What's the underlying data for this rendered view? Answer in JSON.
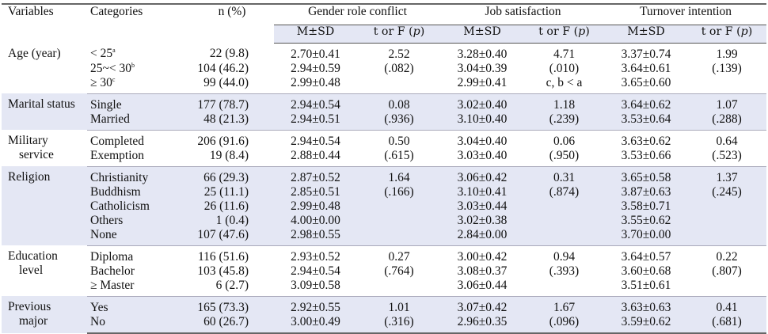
{
  "header": {
    "variables": "Variables",
    "categories": "Categories",
    "n": "n (%)",
    "groups": [
      "Gender role conflict",
      "Job satisfaction",
      "Turnover intention"
    ],
    "msd": "M±SD",
    "test_prefix": "t or F (",
    "test_p": "p",
    "test_suffix": ")"
  },
  "groups": [
    {
      "variable": [
        "Age (year)"
      ],
      "rows": [
        {
          "cat": "< 25",
          "sup": "a",
          "n": "22 (9.8)",
          "g_msd": "2.70±0.41",
          "g_t": "2.52",
          "j_msd": "3.28±0.40",
          "j_t": "4.71",
          "t_msd": "3.37±0.74",
          "t_t": "1.99"
        },
        {
          "cat": "25~< 30",
          "sup": "b",
          "n": "104 (46.2)",
          "g_msd": "2.94±0.59",
          "g_t": "(.082)",
          "j_msd": "3.04±0.39",
          "j_t": "(.010)",
          "t_msd": "3.64±0.61",
          "t_t": "(.139)"
        },
        {
          "cat": "≥ 30",
          "sup": "c",
          "n": "99 (44.0)",
          "g_msd": "2.99±0.48",
          "g_t": "",
          "j_msd": "2.99±0.41",
          "j_t": "c, b < a",
          "t_msd": "3.65±0.60",
          "t_t": ""
        }
      ]
    },
    {
      "variable": [
        "Marital status"
      ],
      "rows": [
        {
          "cat": "Single",
          "sup": "",
          "n": "177 (78.7)",
          "g_msd": "2.94±0.54",
          "g_t": "0.08",
          "j_msd": "3.02±0.40",
          "j_t": "1.18",
          "t_msd": "3.64±0.62",
          "t_t": "1.07"
        },
        {
          "cat": "Married",
          "sup": "",
          "n": "48 (21.3)",
          "g_msd": "2.94±0.51",
          "g_t": "(.936)",
          "j_msd": "3.10±0.40",
          "j_t": "(.239)",
          "t_msd": "3.53±0.64",
          "t_t": "(.288)"
        }
      ]
    },
    {
      "variable": [
        "Military",
        "service"
      ],
      "rows": [
        {
          "cat": "Completed",
          "sup": "",
          "n": "206 (91.6)",
          "g_msd": "2.94±0.54",
          "g_t": "0.50",
          "j_msd": "3.04±0.40",
          "j_t": "0.06",
          "t_msd": "3.63±0.62",
          "t_t": "0.64"
        },
        {
          "cat": "Exemption",
          "sup": "",
          "n": "19 (8.4)",
          "g_msd": "2.88±0.44",
          "g_t": "(.615)",
          "j_msd": "3.03±0.40",
          "j_t": "(.950)",
          "t_msd": "3.53±0.66",
          "t_t": "(.523)"
        }
      ]
    },
    {
      "variable": [
        "Religion"
      ],
      "rows": [
        {
          "cat": "Christianity",
          "sup": "",
          "n": "66 (29.3)",
          "g_msd": "2.87±0.52",
          "g_t": "1.64",
          "j_msd": "3.06±0.42",
          "j_t": "0.31",
          "t_msd": "3.65±0.58",
          "t_t": "1.37"
        },
        {
          "cat": "Buddhism",
          "sup": "",
          "n": "25 (11.1)",
          "g_msd": "2.85±0.51",
          "g_t": "(.166)",
          "j_msd": "3.10±0.41",
          "j_t": "(.874)",
          "t_msd": "3.87±0.63",
          "t_t": "(.245)"
        },
        {
          "cat": "Catholicism",
          "sup": "",
          "n": "26 (11.6)",
          "g_msd": "2.99±0.48",
          "g_t": "",
          "j_msd": "3.03±0.44",
          "j_t": "",
          "t_msd": "3.58±0.71",
          "t_t": ""
        },
        {
          "cat": "Others",
          "sup": "",
          "n": "1 (0.4)",
          "g_msd": "4.00±0.00",
          "g_t": "",
          "j_msd": "3.02±0.38",
          "j_t": "",
          "t_msd": "3.55±0.62",
          "t_t": ""
        },
        {
          "cat": "None",
          "sup": "",
          "n": "107 (47.6)",
          "g_msd": "2.98±0.55",
          "g_t": "",
          "j_msd": "2.84±0.00",
          "j_t": "",
          "t_msd": "3.70±0.00",
          "t_t": ""
        }
      ]
    },
    {
      "variable": [
        "Education",
        "level"
      ],
      "rows": [
        {
          "cat": "Diploma",
          "sup": "",
          "n": "116 (51.6)",
          "g_msd": "2.93±0.52",
          "g_t": "0.27",
          "j_msd": "3.00±0.42",
          "j_t": "0.94",
          "t_msd": "3.64±0.57",
          "t_t": "0.22"
        },
        {
          "cat": "Bachelor",
          "sup": "",
          "n": "103 (45.8)",
          "g_msd": "2.94±0.54",
          "g_t": "(.764)",
          "j_msd": "3.08±0.37",
          "j_t": "(.393)",
          "t_msd": "3.60±0.68",
          "t_t": "(.807)"
        },
        {
          "cat": "≥ Master",
          "sup": "",
          "n": "6 (2.7)",
          "g_msd": "3.09±0.58",
          "g_t": "",
          "j_msd": "3.06±0.44",
          "j_t": "",
          "t_msd": "3.51±0.61",
          "t_t": ""
        }
      ]
    },
    {
      "variable": [
        "Previous",
        "major"
      ],
      "rows": [
        {
          "cat": "Yes",
          "sup": "",
          "n": "165 (73.3)",
          "g_msd": "2.92±0.55",
          "g_t": "1.01",
          "j_msd": "3.07±0.42",
          "j_t": "1.67",
          "t_msd": "3.63±0.63",
          "t_t": "0.41"
        },
        {
          "cat": "No",
          "sup": "",
          "n": "60 (26.7)",
          "g_msd": "3.00±0.49",
          "g_t": "(.316)",
          "j_msd": "2.96±0.35",
          "j_t": "(.096)",
          "t_msd": "3.59±0.62",
          "t_t": "(.681)"
        }
      ]
    }
  ],
  "colors": {
    "band": "#e4e7f4",
    "rule": "#666666"
  }
}
